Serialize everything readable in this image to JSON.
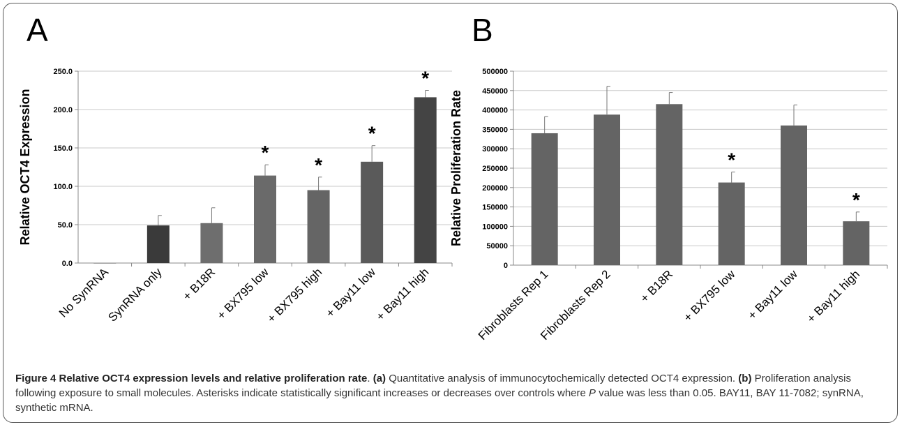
{
  "panels": {
    "a_letter": "A",
    "b_letter": "B"
  },
  "chart_data": [
    {
      "type": "bar",
      "title": "",
      "xlabel": "",
      "ylabel": "Relative OCT4 Expression",
      "ylim": [
        0,
        250
      ],
      "yticks": [
        "0.0",
        "50.0",
        "100.0",
        "150.0",
        "200.0",
        "250.0"
      ],
      "grid": true,
      "categories": [
        "No SynRNA",
        "SynRNA only",
        "+ B18R",
        "+ BX795 low",
        "+ BX795 high",
        "+ Bay11 low",
        "+ Bay11 high"
      ],
      "values": [
        0,
        49,
        52,
        114,
        95,
        132,
        216
      ],
      "errors": [
        0,
        13,
        20,
        14,
        17,
        21,
        9
      ],
      "significant": [
        false,
        false,
        false,
        true,
        true,
        true,
        true
      ],
      "bar_colors": [
        "#666666",
        "#3a3a3a",
        "#6e6e6e",
        "#6a6a6a",
        "#656565",
        "#5a5a5a",
        "#444444"
      ],
      "significance_marker": "*"
    },
    {
      "type": "bar",
      "title": "",
      "xlabel": "",
      "ylabel": "Relative Proliferation Rate",
      "ylim": [
        0,
        500000
      ],
      "yticks": [
        "0",
        "50000",
        "100000",
        "150000",
        "200000",
        "250000",
        "300000",
        "350000",
        "400000",
        "450000",
        "500000"
      ],
      "grid": true,
      "categories": [
        "Fibroblasts Rep 1",
        "Fibroblasts Rep 2",
        "+ B18R",
        "+ BX795 low",
        "+ Bay11 low",
        "+ Bay11 high"
      ],
      "values": [
        340000,
        388000,
        415000,
        213000,
        360000,
        113000
      ],
      "errors": [
        43000,
        73000,
        30000,
        27000,
        53000,
        24000
      ],
      "significant": [
        false,
        false,
        false,
        true,
        false,
        true
      ],
      "bar_colors": [
        "#646464",
        "#646464",
        "#646464",
        "#646464",
        "#646464",
        "#646464"
      ],
      "significance_marker": "*"
    }
  ],
  "caption": {
    "title": "Figure 4 Relative OCT4 expression levels and relative proliferation rate",
    "period": ". ",
    "a_tag": "(a)",
    "a_text": " Quantitative analysis of immunocytochemically detected OCT4 expression. ",
    "b_tag": "(b)",
    "b_text": " Proliferation analysis following exposure to small molecules. Asterisks indicate statistically significant increases or decreases over controls where ",
    "p_symbol": "P",
    "tail": " value was less than 0.05. BAY11, BAY 11-7082; synRNA, synthetic mRNA."
  }
}
